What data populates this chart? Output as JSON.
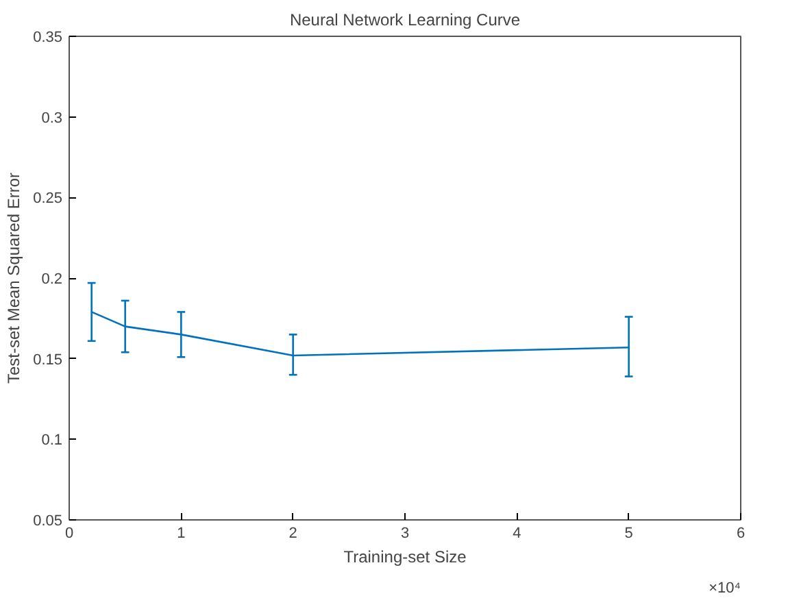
{
  "chart_data": {
    "type": "line",
    "title": "Neural Network Learning Curve",
    "xlabel": "Training-set Size",
    "ylabel": "Test-set Mean Squared Error",
    "x": [
      0.2,
      0.5,
      1,
      2,
      5
    ],
    "series": [
      {
        "color": "#0072bd",
        "values": [
          0.179,
          0.17,
          0.165,
          0.152,
          0.157
        ],
        "errors": [
          [
            0.161,
            0.197
          ],
          [
            0.154,
            0.186
          ],
          [
            0.151,
            0.179
          ],
          [
            0.14,
            0.165
          ],
          [
            0.139,
            0.176
          ]
        ]
      }
    ],
    "xlim": [
      0,
      6
    ],
    "xticks": [
      0,
      1,
      2,
      3,
      4,
      5,
      6
    ],
    "ylim": [
      0.05,
      0.35
    ],
    "yticks": [
      0.05,
      0.1,
      0.15,
      0.2,
      0.25,
      0.3,
      0.35
    ],
    "annotations": [
      "×10⁴"
    ],
    "grid": false,
    "marker": "none",
    "line_style": "solid"
  }
}
